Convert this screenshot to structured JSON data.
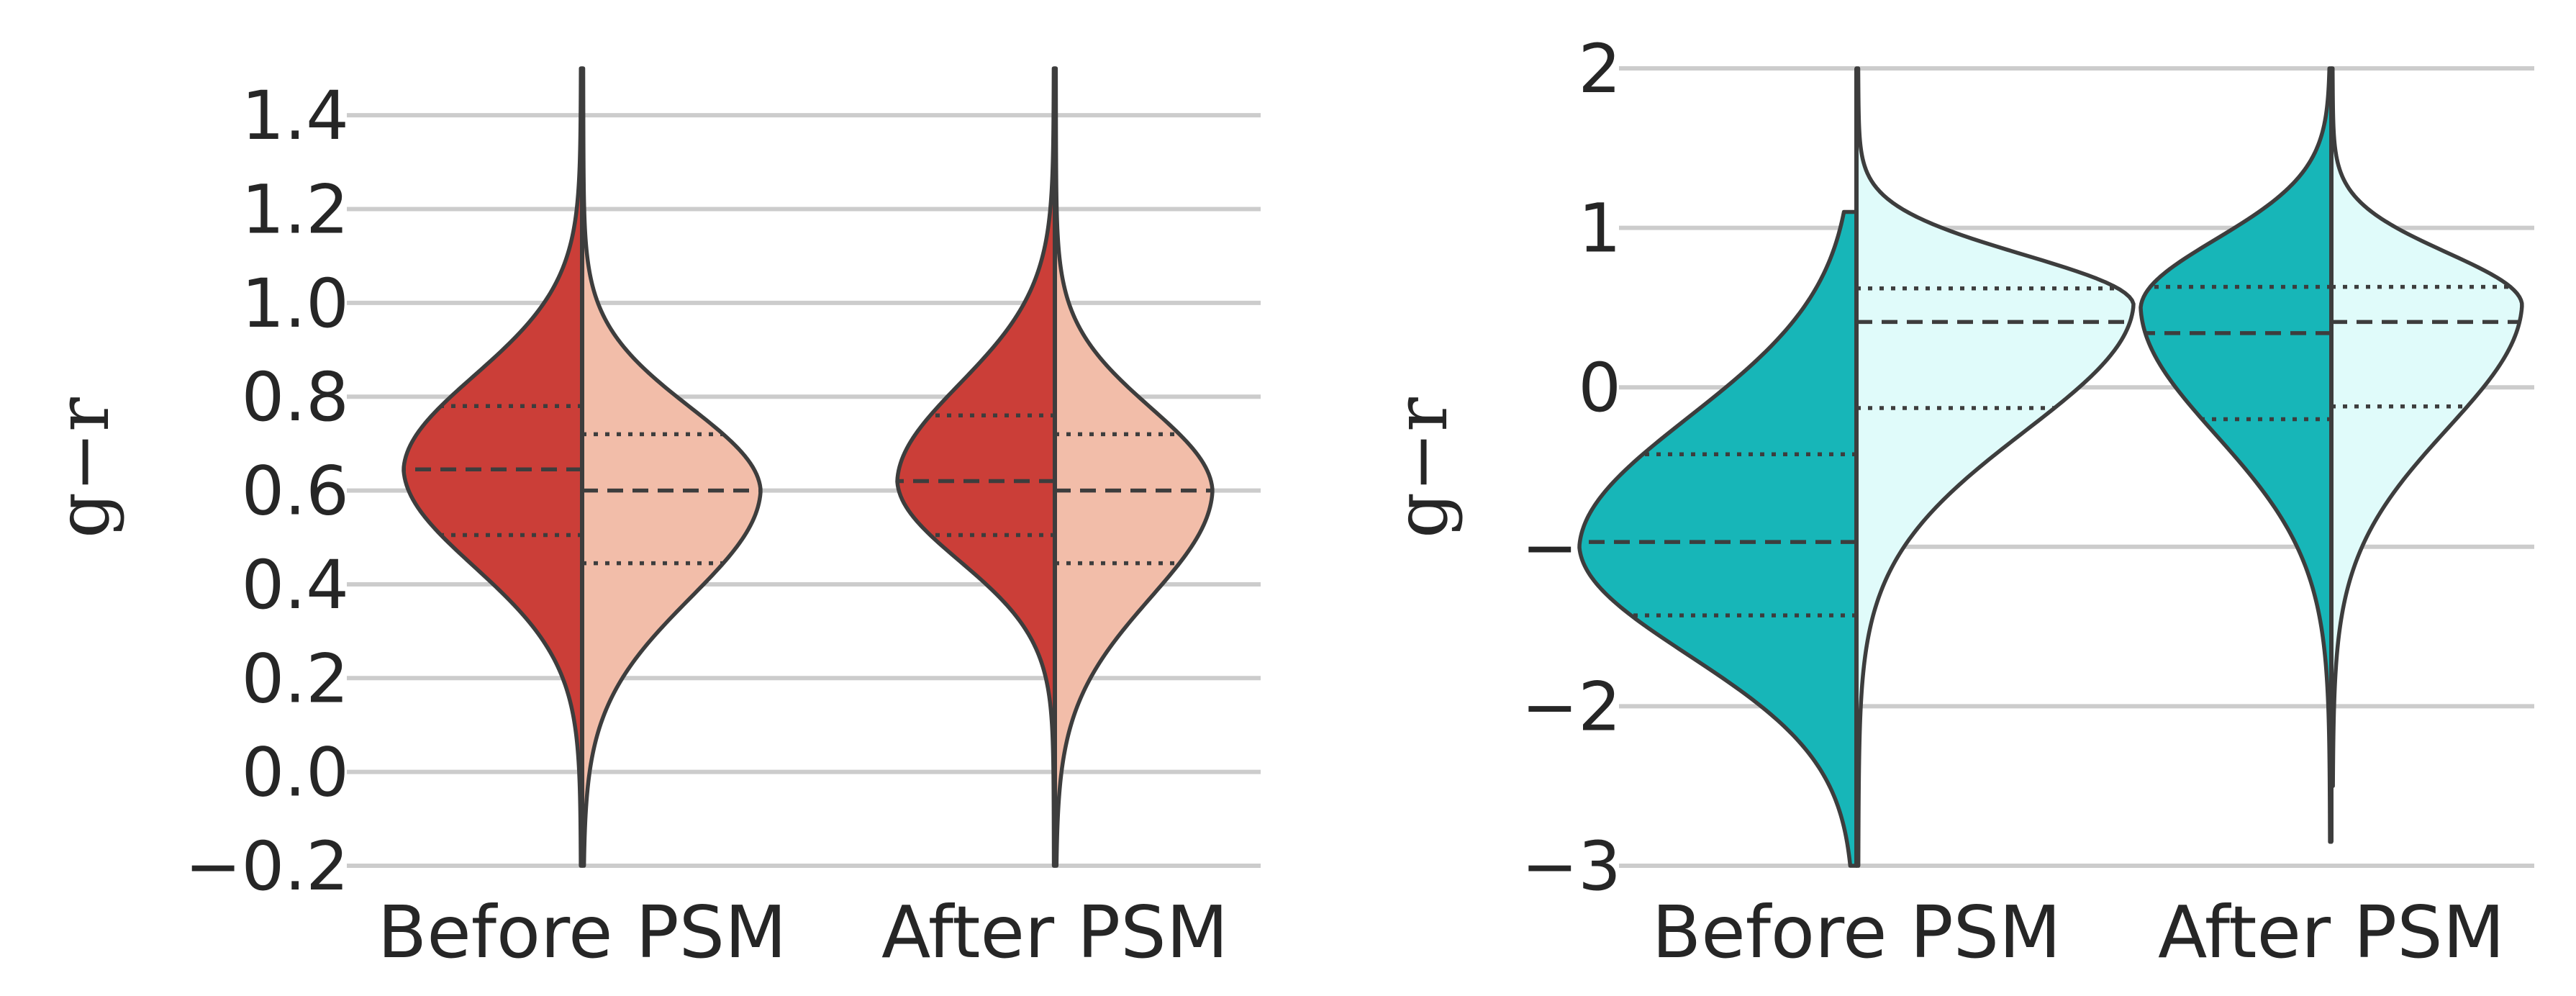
{
  "chart_data": [
    {
      "type": "violin",
      "split": true,
      "ylabel": "g−r",
      "ylim": [
        -0.2,
        1.5
      ],
      "yticks": [
        -0.2,
        0.0,
        0.2,
        0.4,
        0.6,
        0.8,
        1.0,
        1.2,
        1.4
      ],
      "ytick_labels": [
        "−0.2",
        "0.0",
        "0.2",
        "0.4",
        "0.6",
        "0.8",
        "1.0",
        "1.2",
        "1.4"
      ],
      "grid": true,
      "categories": [
        "Before PSM",
        "After PSM"
      ],
      "colors": {
        "left": "#cb3e38",
        "right": "#f2bda9"
      },
      "violins": [
        {
          "category": "Before PSM",
          "left": {
            "quartiles": [
              0.505,
              0.645,
              0.78
            ],
            "range": [
              -0.2,
              1.5
            ],
            "mode": 0.645
          },
          "right": {
            "quartiles": [
              0.445,
              0.6,
              0.72
            ],
            "range": [
              -0.2,
              1.5
            ],
            "mode": 0.6
          }
        },
        {
          "category": "After PSM",
          "left": {
            "quartiles": [
              0.505,
              0.62,
              0.76
            ],
            "range": [
              -0.2,
              1.5
            ],
            "mode": 0.62
          },
          "right": {
            "quartiles": [
              0.445,
              0.6,
              0.72
            ],
            "range": [
              -0.2,
              1.5
            ],
            "mode": 0.6
          }
        }
      ]
    },
    {
      "type": "violin",
      "split": true,
      "ylabel": "g−r",
      "ylim": [
        -3,
        2
      ],
      "yticks": [
        -3,
        -2,
        -1,
        0,
        1,
        2
      ],
      "ytick_labels": [
        "−3",
        "−2",
        "−1",
        "0",
        "1",
        "2"
      ],
      "grid": true,
      "categories": [
        "Before PSM",
        "After PSM"
      ],
      "colors": {
        "left": "#17b6b8",
        "right": "#e0fbfa"
      },
      "violins": [
        {
          "category": "Before PSM",
          "left": {
            "quartiles": [
              -1.43,
              -0.97,
              -0.42
            ],
            "range": [
              -3,
              1.1
            ],
            "mode": -1.0
          },
          "right": {
            "quartiles": [
              -0.13,
              0.41,
              0.62
            ],
            "range": [
              -3,
              2.0
            ],
            "mode": 0.52
          }
        },
        {
          "category": "After PSM",
          "left": {
            "quartiles": [
              -0.2,
              0.34,
              0.63
            ],
            "range": [
              -2.85,
              2.0
            ],
            "mode": 0.5
          },
          "right": {
            "quartiles": [
              -0.12,
              0.41,
              0.63
            ],
            "range": [
              -2.5,
              2.0
            ],
            "mode": 0.52
          }
        }
      ]
    }
  ]
}
